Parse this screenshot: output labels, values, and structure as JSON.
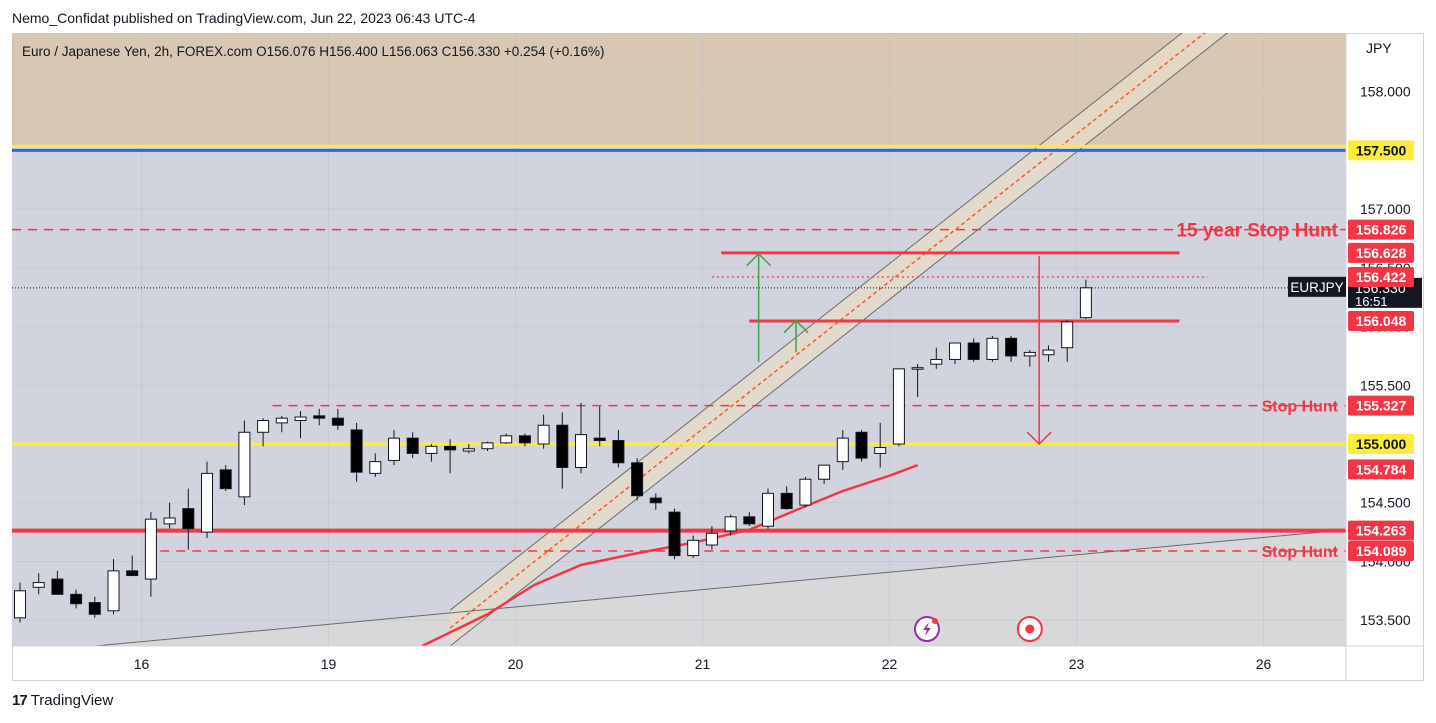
{
  "publisher_line": "Nemo_Confidat published on TradingView.com, Jun 22, 2023 06:43 UTC-4",
  "footer_brand": "TradingView",
  "footer_logo_glyph": "17",
  "legend": {
    "symbol": "Euro / Japanese Yen, 2h, FOREX.com",
    "o_label": "O",
    "o": "156.076",
    "h_label": "H",
    "h": "156.400",
    "l_label": "L",
    "l": "156.063",
    "c_label": "C",
    "c": "156.330",
    "chg": "+0.254 (+0.16%)"
  },
  "chart_data": {
    "type": "candlestick",
    "symbol": "EURJPY",
    "currency_label": "JPY",
    "timeframe": "2h",
    "ylim": [
      153.28,
      158.5
    ],
    "y_ticks": [
      "153.500",
      "154.000",
      "154.500",
      "155.000",
      "155.500",
      "156.000",
      "156.500",
      "157.000",
      "157.500",
      "158.000"
    ],
    "x_ticks": [
      {
        "label": "16",
        "t": 6.5
      },
      {
        "label": "19",
        "t": 16.5
      },
      {
        "label": "20",
        "t": 26.5
      },
      {
        "label": "21",
        "t": 36.5
      },
      {
        "label": "22",
        "t": 46.5
      },
      {
        "label": "23",
        "t": 56.5
      },
      {
        "label": "26",
        "t": 66.5
      }
    ],
    "candles": [
      [
        153.52,
        153.82,
        153.48,
        153.75
      ],
      [
        153.78,
        153.9,
        153.72,
        153.82
      ],
      [
        153.85,
        153.92,
        153.75,
        153.72
      ],
      [
        153.72,
        153.76,
        153.6,
        153.64
      ],
      [
        153.65,
        153.7,
        153.52,
        153.55
      ],
      [
        153.58,
        154.02,
        153.55,
        153.92
      ],
      [
        153.92,
        154.05,
        153.9,
        153.88
      ],
      [
        153.85,
        154.42,
        153.7,
        154.36
      ],
      [
        154.32,
        154.5,
        154.28,
        154.37
      ],
      [
        154.45,
        154.62,
        154.1,
        154.28
      ],
      [
        154.25,
        154.85,
        154.2,
        154.75
      ],
      [
        154.78,
        154.82,
        154.6,
        154.62
      ],
      [
        154.55,
        155.2,
        154.48,
        155.1
      ],
      [
        155.1,
        155.22,
        154.98,
        155.2
      ],
      [
        155.18,
        155.24,
        155.1,
        155.22
      ],
      [
        155.2,
        155.28,
        155.05,
        155.23
      ],
      [
        155.24,
        155.3,
        155.16,
        155.22
      ],
      [
        155.22,
        155.3,
        155.12,
        155.16
      ],
      [
        155.12,
        155.18,
        154.68,
        154.76
      ],
      [
        154.75,
        154.92,
        154.72,
        154.85
      ],
      [
        154.86,
        155.12,
        154.82,
        155.05
      ],
      [
        155.05,
        155.1,
        154.88,
        154.92
      ],
      [
        154.92,
        155.0,
        154.85,
        154.98
      ],
      [
        154.98,
        155.04,
        154.75,
        154.95
      ],
      [
        154.94,
        155.0,
        154.92,
        154.96
      ],
      [
        154.96,
        155.02,
        154.94,
        155.01
      ],
      [
        155.01,
        155.09,
        155.0,
        155.07
      ],
      [
        155.07,
        155.09,
        154.98,
        155.01
      ],
      [
        155.0,
        155.25,
        154.96,
        155.16
      ],
      [
        155.16,
        155.27,
        154.62,
        154.8
      ],
      [
        154.8,
        155.35,
        154.75,
        155.08
      ],
      [
        155.05,
        155.32,
        154.98,
        155.03
      ],
      [
        155.03,
        155.12,
        154.8,
        154.84
      ],
      [
        154.84,
        154.88,
        154.52,
        154.56
      ],
      [
        154.54,
        154.58,
        154.44,
        154.5
      ],
      [
        154.42,
        154.45,
        154.02,
        154.05
      ],
      [
        154.05,
        154.22,
        154.03,
        154.18
      ],
      [
        154.14,
        154.3,
        154.1,
        154.24
      ],
      [
        154.26,
        154.4,
        154.22,
        154.38
      ],
      [
        154.38,
        154.42,
        154.3,
        154.32
      ],
      [
        154.3,
        154.62,
        154.28,
        154.58
      ],
      [
        154.58,
        154.64,
        154.44,
        154.45
      ],
      [
        154.48,
        154.72,
        154.46,
        154.7
      ],
      [
        154.7,
        154.82,
        154.66,
        154.82
      ],
      [
        154.85,
        155.12,
        154.78,
        155.05
      ],
      [
        155.1,
        155.12,
        154.85,
        154.88
      ],
      [
        154.92,
        155.18,
        154.8,
        154.97
      ],
      [
        155.0,
        155.62,
        154.98,
        155.64
      ],
      [
        155.64,
        155.68,
        155.4,
        155.65
      ],
      [
        155.68,
        155.82,
        155.64,
        155.72
      ],
      [
        155.72,
        155.86,
        155.68,
        155.86
      ],
      [
        155.86,
        155.9,
        155.7,
        155.72
      ],
      [
        155.72,
        155.92,
        155.7,
        155.9
      ],
      [
        155.9,
        155.92,
        155.7,
        155.75
      ],
      [
        155.75,
        155.8,
        155.66,
        155.78
      ],
      [
        155.76,
        155.84,
        155.7,
        155.8
      ],
      [
        155.82,
        156.06,
        155.7,
        156.04
      ],
      [
        156.076,
        156.4,
        156.063,
        156.33
      ]
    ],
    "moving_average": [
      {
        "t": 21.5,
        "v": 153.28
      },
      {
        "t": 25,
        "v": 153.55
      },
      {
        "t": 27.5,
        "v": 153.8
      },
      {
        "t": 30,
        "v": 153.97
      },
      {
        "t": 33,
        "v": 154.07
      },
      {
        "t": 36,
        "v": 154.16
      },
      {
        "t": 39,
        "v": 154.27
      },
      {
        "t": 42,
        "v": 154.47
      },
      {
        "t": 44,
        "v": 154.6
      },
      {
        "t": 46.5,
        "v": 154.73
      },
      {
        "t": 48,
        "v": 154.82
      }
    ],
    "trend_line_long": [
      {
        "t": 4,
        "v": 153.28
      },
      {
        "t": 75,
        "v": 154.33
      }
    ],
    "channel": {
      "start_t": 23,
      "end_t": 68,
      "lower_start": 153.28,
      "slope_per_bar": 0.1256,
      "width": 0.305
    },
    "horizontal_levels": [
      {
        "value": 157.5,
        "label": "157.500",
        "style": "solid-blue-yellow",
        "color": "#2962ff",
        "label_bg": "#ffeb3b",
        "label_color": "#131722"
      },
      {
        "value": 156.826,
        "label": "156.826",
        "style": "dashed",
        "color": "#f23645",
        "annotation": "15 year Stop Hunt"
      },
      {
        "value": 156.628,
        "label": "156.628",
        "style": "solid-short",
        "color": "#f23645",
        "from_t": 37.5,
        "to_t": 62
      },
      {
        "value": 156.422,
        "label": "156.422",
        "style": "dotted-short",
        "color": "#f23645",
        "from_t": 37,
        "to_t": 63.5
      },
      {
        "value": 156.048,
        "label": "156.048",
        "style": "solid-short",
        "color": "#f23645",
        "from_t": 39,
        "to_t": 62
      },
      {
        "value": 155.327,
        "label": "155.327",
        "style": "dashed-from",
        "color": "#f23645",
        "from_t": 13.5,
        "annotation": "Stop Hunt"
      },
      {
        "value": 155.0,
        "label": "155.000",
        "style": "solid-yellow",
        "color": "#ffeb3b",
        "label_bg": "#ffeb3b",
        "label_color": "#131722"
      },
      {
        "value": 154.784,
        "label": "154.784",
        "style": "none",
        "color": "#f23645"
      },
      {
        "value": 154.263,
        "label": "154.263",
        "style": "solid-thick",
        "color": "#f23645"
      },
      {
        "value": 154.089,
        "label": "154.089",
        "style": "dashed-from",
        "color": "#f23645",
        "from_t": 7.5,
        "annotation": "Stop Hunt"
      }
    ],
    "zones": [
      {
        "from": 157.53,
        "to": 158.5,
        "color": "#d8c7b2"
      },
      {
        "from": 155.0,
        "to": 155.75,
        "color": "#e6c4cc"
      },
      {
        "from": 153.28,
        "to": 157.53,
        "color": "#d1d4de"
      }
    ],
    "arrows": [
      {
        "t": 39.5,
        "from": 155.7,
        "to": 156.62,
        "color": "#43a047",
        "dir": "up"
      },
      {
        "t": 41.5,
        "from": 155.78,
        "to": 156.05,
        "color": "#43a047",
        "dir": "up"
      },
      {
        "t": 54.5,
        "from": 156.6,
        "to": 155.0,
        "color": "#f23645",
        "dir": "down"
      }
    ],
    "current_price": {
      "value": 156.33,
      "label": "EURJPY",
      "price_text": "156.330",
      "countdown": "16:51"
    },
    "event_icons": [
      {
        "t": 48.5,
        "name": "lightning-event-icon",
        "color": "#9c27b0"
      },
      {
        "t": 54,
        "name": "target-event-icon",
        "color": "#f23645"
      }
    ],
    "colors": {
      "up_candle": "#ffffff",
      "down_candle": "#000000",
      "moving_average": "#f23645",
      "channel_mid": "#ff5722"
    }
  }
}
